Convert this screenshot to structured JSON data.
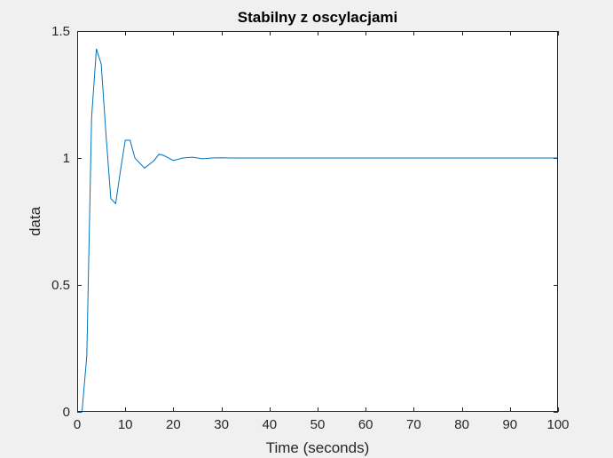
{
  "chart_data": {
    "type": "line",
    "title": "Stabilny z oscylacjami",
    "xlabel": "Time (seconds)",
    "ylabel": "data",
    "xlim": [
      0,
      100
    ],
    "ylim": [
      0,
      1.5
    ],
    "xticks": [
      0,
      10,
      20,
      30,
      40,
      50,
      60,
      70,
      80,
      90,
      100
    ],
    "yticks": [
      0,
      0.5,
      1,
      1.5
    ],
    "xtick_labels": [
      "0",
      "10",
      "20",
      "30",
      "40",
      "50",
      "60",
      "70",
      "80",
      "90",
      "100"
    ],
    "ytick_labels": [
      "0",
      "0.5",
      "1",
      "1.5"
    ],
    "grid": false,
    "colors": {
      "line": "#0072bd",
      "axes": "#262626",
      "plot_bg": "#ffffff",
      "figure_bg": "#f0f0f0"
    },
    "series": [
      {
        "x": [
          0,
          1,
          2,
          3,
          4,
          5,
          6,
          7,
          8,
          9,
          10,
          11,
          12,
          14,
          16,
          17,
          18,
          20,
          22,
          24,
          26,
          28,
          30,
          32,
          35,
          40,
          50,
          60,
          70,
          80,
          90,
          100
        ],
        "y": [
          0,
          0,
          0.22,
          1.16,
          1.43,
          1.37,
          1.09,
          0.84,
          0.82,
          0.95,
          1.07,
          1.07,
          1.0,
          0.96,
          0.99,
          1.015,
          1.01,
          0.99,
          1.0,
          1.003,
          0.997,
          1.0,
          1.001,
          1.0,
          1.0,
          1.0,
          1.0,
          1.0,
          1.0,
          1.0,
          1.0,
          1.0
        ]
      }
    ]
  }
}
